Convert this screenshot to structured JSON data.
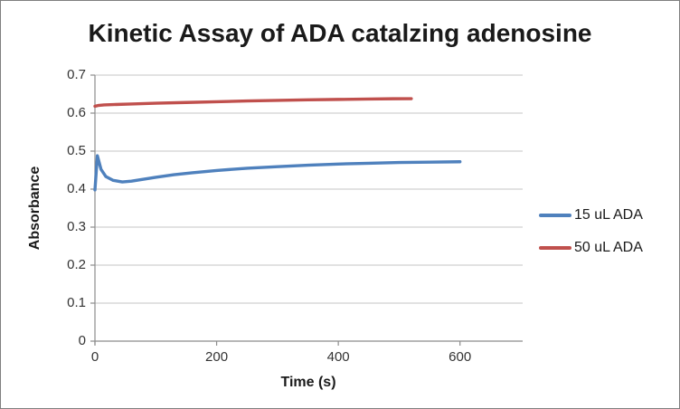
{
  "chart_data": {
    "type": "line",
    "title": "Kinetic Assay of ADA catalzing adenosine",
    "xlabel": "Time (s)",
    "ylabel": "Absorbance",
    "xlim": [
      0,
      703
    ],
    "ylim": [
      0,
      0.7
    ],
    "xticks": [
      0,
      200,
      400,
      600
    ],
    "xtick_labels": [
      "0",
      "200",
      "400",
      "600"
    ],
    "yticks": [
      0,
      0.1,
      0.2,
      0.3,
      0.4,
      0.5,
      0.6,
      0.7
    ],
    "ytick_labels": [
      "0",
      "0.1",
      "0.2",
      "0.3",
      "0.4",
      "0.5",
      "0.6",
      "0.7"
    ],
    "grid": "horizontal-only",
    "legend_position": "right-outside",
    "series": [
      {
        "name": "15 uL ADA",
        "color": "#4F81BD",
        "points": [
          [
            0,
            0.398
          ],
          [
            4,
            0.488
          ],
          [
            10,
            0.452
          ],
          [
            18,
            0.433
          ],
          [
            30,
            0.423
          ],
          [
            45,
            0.419
          ],
          [
            60,
            0.421
          ],
          [
            80,
            0.426
          ],
          [
            100,
            0.431
          ],
          [
            130,
            0.438
          ],
          [
            160,
            0.443
          ],
          [
            200,
            0.449
          ],
          [
            250,
            0.455
          ],
          [
            300,
            0.459
          ],
          [
            350,
            0.463
          ],
          [
            400,
            0.466
          ],
          [
            450,
            0.468
          ],
          [
            500,
            0.47
          ],
          [
            550,
            0.471
          ],
          [
            600,
            0.472
          ]
        ]
      },
      {
        "name": "50 uL ADA",
        "color": "#C0504D",
        "points": [
          [
            0,
            0.618
          ],
          [
            5,
            0.62
          ],
          [
            15,
            0.6215
          ],
          [
            30,
            0.6225
          ],
          [
            60,
            0.624
          ],
          [
            100,
            0.626
          ],
          [
            150,
            0.628
          ],
          [
            200,
            0.63
          ],
          [
            250,
            0.632
          ],
          [
            300,
            0.6335
          ],
          [
            350,
            0.635
          ],
          [
            400,
            0.636
          ],
          [
            450,
            0.637
          ],
          [
            490,
            0.6378
          ],
          [
            520,
            0.638
          ]
        ]
      }
    ]
  }
}
